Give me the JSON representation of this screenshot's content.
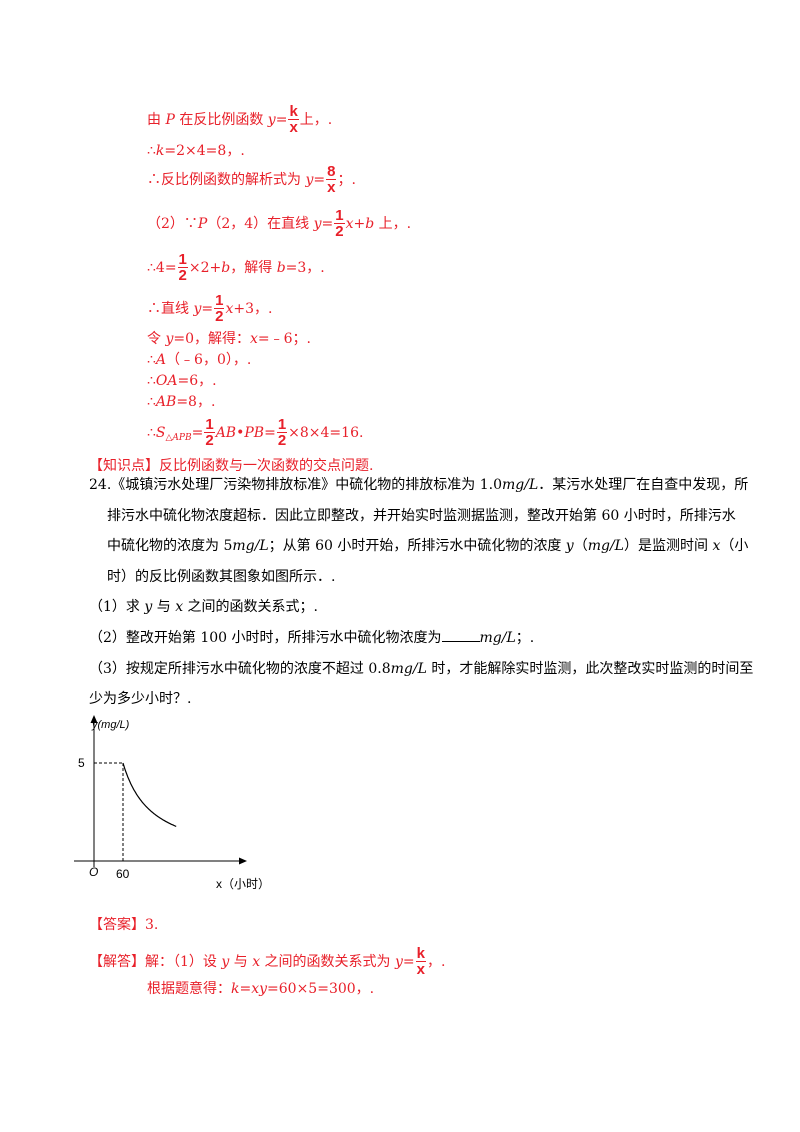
{
  "solution_top": {
    "l1": {
      "a": "由 ",
      "p": "P",
      "b": " 在反比例函数 ",
      "y": "y",
      "eq": "=",
      "k": "k",
      "x": "x",
      "end": "上，."
    },
    "l2": {
      "a": "∴",
      "k": "k",
      "b": "=2×4=8，."
    },
    "l3": {
      "a": "∴反比例函数的解析式为 ",
      "y": "y",
      "eq": "=",
      "num": "8",
      "den": "x",
      "end": "；."
    },
    "l4": {
      "a": "（2）∵",
      "p": "P",
      "b": "（2，4）在直线 ",
      "y": "y",
      "eq": "=",
      "num": "1",
      "den": "2",
      "x": "x",
      "c": "+",
      "bb": "b",
      "end": " 上，."
    },
    "l5": {
      "a": "∴4=",
      "num": "1",
      "den": "2",
      "b": "×2+",
      "bb": "b",
      "c": "，解得 ",
      "bb2": "b",
      "end": "=3，."
    },
    "l6": {
      "a": "∴直线 ",
      "y": "y",
      "eq": "=",
      "num": "1",
      "den": "2",
      "x": "x",
      "end": "+3，."
    },
    "l7": {
      "a": "令 ",
      "y": "y",
      "b": "=0，解得：",
      "x": "x",
      "end": "=﹣6；."
    },
    "l8": {
      "a": "∴",
      "A": "A",
      "end": "（﹣6，0），."
    },
    "l9": {
      "a": "∴",
      "OA": "OA",
      "end": "=6，."
    },
    "l10": {
      "a": "∴",
      "AB": "AB",
      "end": "=8，."
    },
    "l11": {
      "a": "∴",
      "S": "S",
      "sub": "△APB",
      "eq": "=",
      "num": "1",
      "den": "2",
      "AB": "AB",
      "dot": "•",
      "PB": "PB",
      "eq2": "=",
      "num2": "1",
      "den2": "2",
      "end": "×8×4=16."
    }
  },
  "knowledge": {
    "tag": "【知识点】",
    "text": "反比例函数与一次函数的交点问题."
  },
  "problem": {
    "p1a": "24.《城镇污水处理厂污染物排放标准》中硫化物的排放标准为 1.0",
    "p1u": "mg/L",
    "p1b": "．某污水处理厂在自查中发现，所",
    "p2": "排污水中硫化物浓度超标．因此立即整改，并开始实时监测据监测，整改开始第 60 小时时，所排污水",
    "p3a": "中硫化物的浓度为 5",
    "p3u": "mg/L",
    "p3b": "；从第 60 小时开始，所排污水中硫化物的浓度 ",
    "p3y": "y",
    "p3c": "（",
    "p3u2": "mg/L",
    "p3d": "）是监测时间 ",
    "p3x": "x",
    "p3e": "（小",
    "p4": "时）的反比例函数其图象如图所示．.",
    "q1a": "（1）求 ",
    "q1y": "y",
    "q1b": " 与 ",
    "q1x": "x",
    "q1c": " 之间的函数关系式；.",
    "q2a": "（2）整改开始第 100 小时时，所排污水中硫化物浓度为",
    "q2u": "mg/L",
    "q2b": "；.",
    "q3a": "（3）按规定所排污水中硫化物的浓度不超过 0.8",
    "q3u": "mg/L",
    "q3b": " 时，才能解除实时监测，此次整改实时监测的时间至",
    "q4": "少为多少小时？."
  },
  "graph": {
    "ylabel": "y(mg/L)",
    "y_tick": "5",
    "origin": "O",
    "x_tick": "60",
    "xlabel": "x（小时）",
    "k": 300
  },
  "answer": {
    "tag": "【答案】",
    "value": "3."
  },
  "solution": {
    "tag": "【解答】",
    "a": "解：（1）设 ",
    "y": "y",
    "b": " 与 ",
    "x": "x",
    "c": " 之间的函数关系式为 ",
    "y2": "y",
    "eq": "=",
    "num": "k",
    "den": "x",
    "end": "，.",
    "l2a": "根据题意得：",
    "l2k": "k",
    "l2eq": "=",
    "l2xy": "xy",
    "l2end": "=60×5=300，."
  }
}
